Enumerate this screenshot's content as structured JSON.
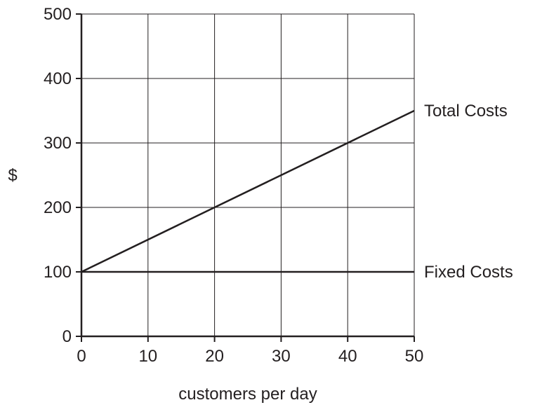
{
  "chart_data": {
    "type": "line",
    "title": "",
    "xlabel": "customers per day",
    "ylabel": "$",
    "xlim": [
      0,
      50
    ],
    "ylim": [
      0,
      500
    ],
    "x_ticks": [
      0,
      10,
      20,
      30,
      40,
      50
    ],
    "y_ticks": [
      0,
      100,
      200,
      300,
      400,
      500
    ],
    "grid": true,
    "legend": "none",
    "series": [
      {
        "name": "Total Costs",
        "x": [
          0,
          50
        ],
        "y": [
          100,
          350
        ]
      },
      {
        "name": "Fixed Costs",
        "x": [
          0,
          50
        ],
        "y": [
          100,
          100
        ]
      }
    ]
  }
}
